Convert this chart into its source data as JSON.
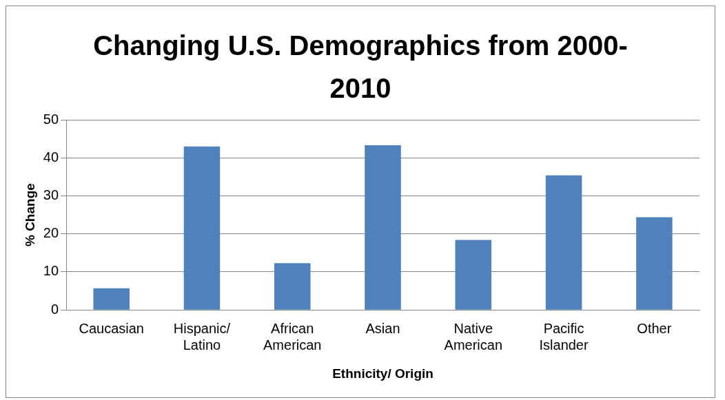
{
  "chart_data": {
    "type": "bar",
    "title": "Changing U.S. Demographics from 2000-2010",
    "xlabel": "Ethnicity/ Origin",
    "ylabel": "% Change",
    "categories": [
      "Caucasian",
      "Hispanic/ Latino",
      "African American",
      "Asian",
      "Native American",
      "Pacific Islander",
      "Other"
    ],
    "values": [
      5.7,
      43.0,
      12.3,
      43.3,
      18.4,
      35.4,
      24.4
    ],
    "color": "#4f81bd",
    "ylim": [
      0,
      50
    ],
    "yticks": [
      0,
      10,
      20,
      30,
      40,
      50
    ],
    "grid": "y"
  }
}
